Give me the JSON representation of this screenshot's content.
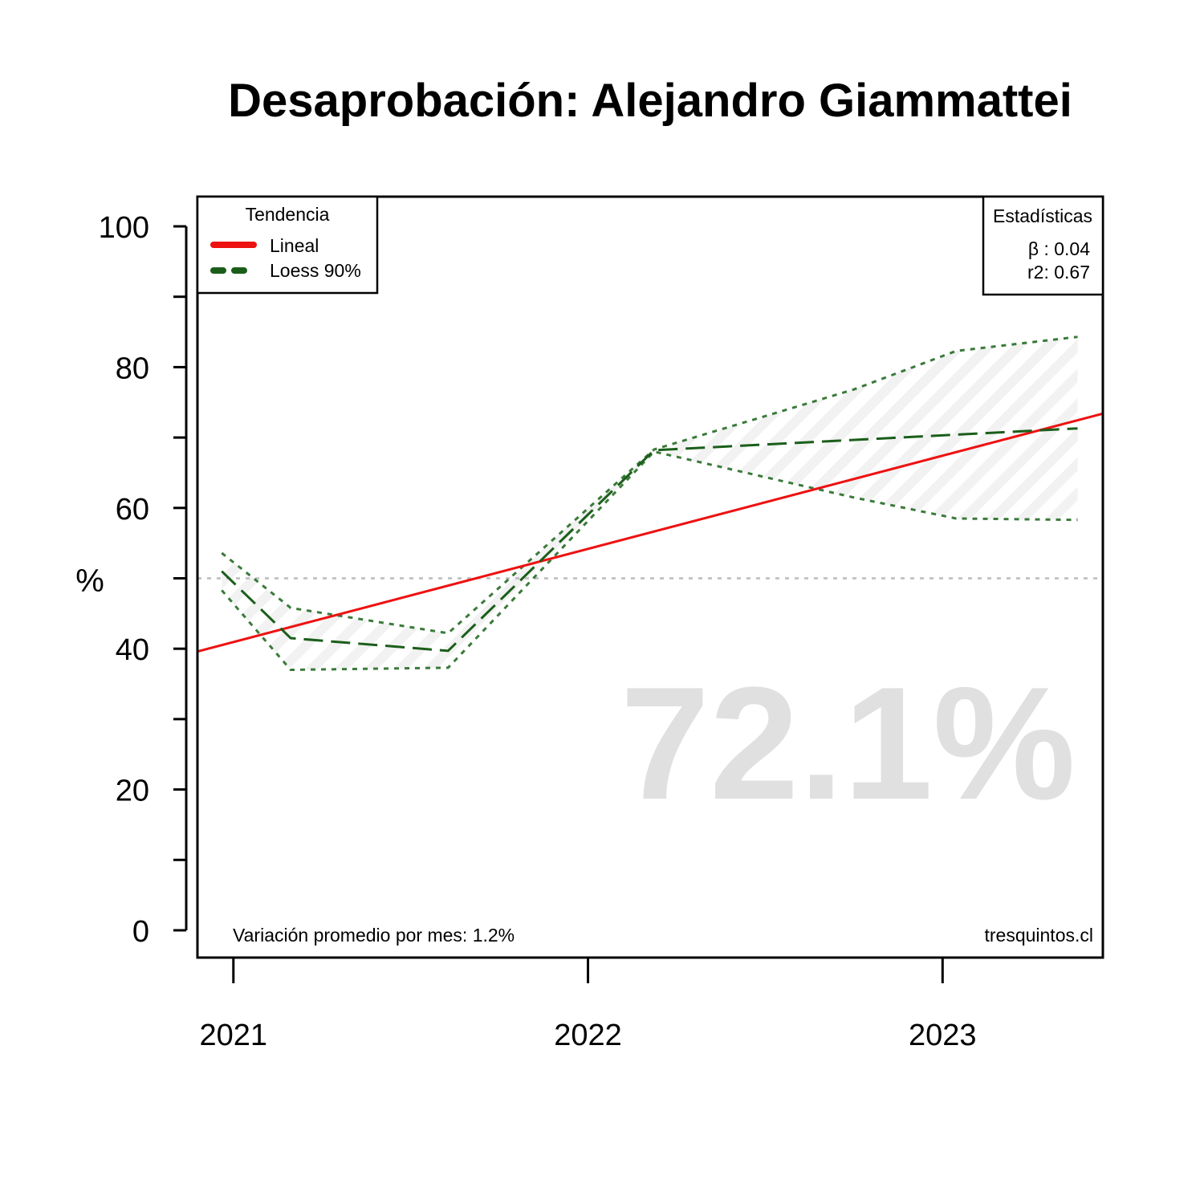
{
  "chart_data": {
    "type": "line",
    "title": "Desaprobación: Alejandro Giammattei",
    "ylabel": "%",
    "xlabel": "",
    "ylim": [
      0,
      100
    ],
    "xlim": [
      "2020-11-25",
      "2023-06-15"
    ],
    "y_ticks_labeled": [
      0,
      20,
      40,
      60,
      80,
      100
    ],
    "y_ticks_minor": [
      10,
      30,
      50,
      70,
      90
    ],
    "x_ticks": [
      {
        "date": "2021-01-01",
        "label": "2021"
      },
      {
        "date": "2022-01-01",
        "label": "2022"
      },
      {
        "date": "2023-01-01",
        "label": "2023"
      }
    ],
    "reference_line": {
      "y": 50,
      "style": "dotted",
      "color": "#bbbbbb"
    },
    "series": [
      {
        "name": "Lineal",
        "style": "solid",
        "color": "#ee1111",
        "x": [
          "2020-11-25",
          "2023-06-15"
        ],
        "y": [
          39.6,
          73.4
        ]
      },
      {
        "name": "Loess 90%",
        "style": "dashed",
        "color": "#1a5e1a",
        "x": [
          "2020-12-20",
          "2021-03-01",
          "2021-08-10",
          "2022-03-10",
          "2023-05-20"
        ],
        "y": [
          51.0,
          41.5,
          39.7,
          68.2,
          71.3
        ]
      }
    ],
    "band": {
      "color": "#3a7a3a",
      "x": [
        "2020-12-20",
        "2021-03-01",
        "2021-08-10",
        "2022-03-10",
        "2022-10-01",
        "2023-01-15",
        "2023-05-20"
      ],
      "upper": [
        53.6,
        45.8,
        42.2,
        68.3,
        76.8,
        82.3,
        84.3
      ],
      "lower": [
        48.3,
        37.0,
        37.3,
        68.0,
        61.5,
        58.5,
        58.3
      ]
    },
    "legend": {
      "title": "Tendencia",
      "entries": [
        {
          "label": "Lineal",
          "style": "solid",
          "color": "#ee1111"
        },
        {
          "label": "Loess 90%",
          "style": "dashed",
          "color": "#1a5e1a"
        }
      ],
      "placement": "top-left"
    },
    "stats_box": {
      "title": "Estadísticas",
      "beta_line": "β : 0.04",
      "r2_line": "r2: 0.67",
      "placement": "top-right"
    },
    "watermark_value": "72.1%",
    "footer_left": "Variación promedio por mes: 1.2%",
    "footer_right": "tresquintos.cl",
    "grid": false
  }
}
